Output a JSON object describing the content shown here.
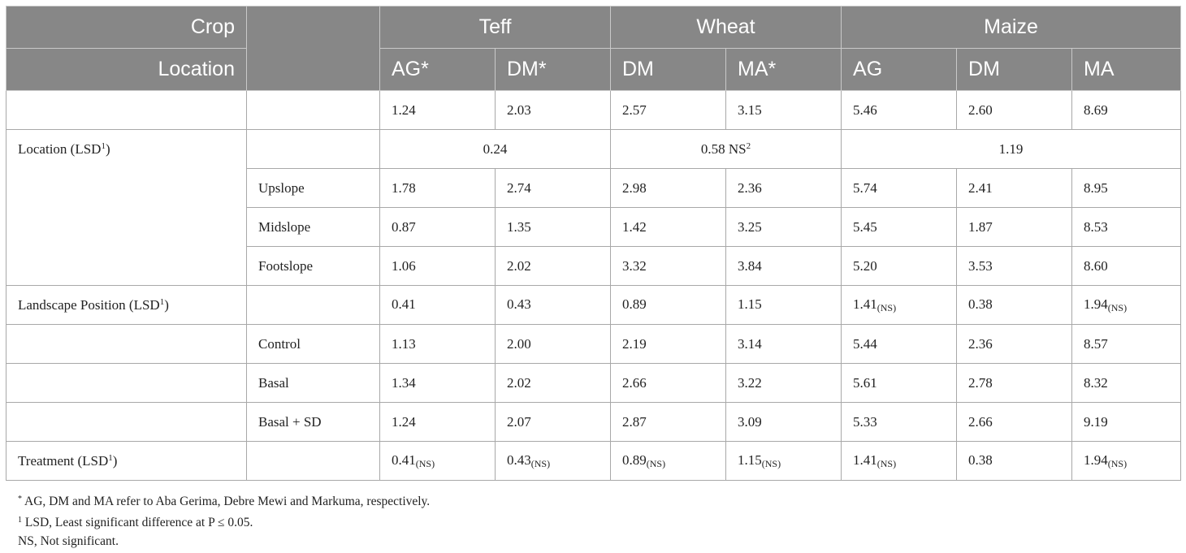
{
  "header": {
    "row1": {
      "label": "Crop",
      "teff": "Teff",
      "wheat": "Wheat",
      "maize": "Maize"
    },
    "row2": {
      "label": "Location",
      "cols": [
        "AG*",
        "DM*",
        "DM",
        "MA*",
        "AG",
        "DM",
        "MA"
      ]
    }
  },
  "rows": {
    "overall": {
      "values": [
        "1.24",
        "2.03",
        "2.57",
        "3.15",
        "5.46",
        "2.60",
        "8.69"
      ]
    },
    "location_lsd": {
      "label": "Location (LSD",
      "sup": "1",
      "label_close": ")",
      "teff": "0.24",
      "wheat": "0.58 NS",
      "wheat_sup": "2",
      "maize": "1.19"
    },
    "upslope": {
      "label": "Upslope",
      "values": [
        "1.78",
        "2.74",
        "2.98",
        "2.36",
        "5.74",
        "2.41",
        "8.95"
      ]
    },
    "midslope": {
      "label": "Midslope",
      "values": [
        "0.87",
        "1.35",
        "1.42",
        "3.25",
        "5.45",
        "1.87",
        "8.53"
      ]
    },
    "footslope": {
      "label": "Footslope",
      "values": [
        "1.06",
        "2.02",
        "3.32",
        "3.84",
        "5.20",
        "3.53",
        "8.60"
      ]
    },
    "landscape_lsd": {
      "label": "Landscape Position (LSD",
      "sup": "1",
      "label_close": ")",
      "values": [
        "0.41",
        "0.43",
        "0.89",
        "1.15",
        "1.41",
        "0.38",
        "1.94"
      ],
      "subs": [
        "",
        "",
        "",
        "",
        "(NS)",
        "",
        "(NS)"
      ]
    },
    "control": {
      "label": "Control",
      "values": [
        "1.13",
        "2.00",
        "2.19",
        "3.14",
        "5.44",
        "2.36",
        "8.57"
      ]
    },
    "basal": {
      "label": "Basal",
      "values": [
        "1.34",
        "2.02",
        "2.66",
        "3.22",
        "5.61",
        "2.78",
        "8.32"
      ]
    },
    "basal_sd": {
      "label": "Basal + SD",
      "values": [
        "1.24",
        "2.07",
        "2.87",
        "3.09",
        "5.33",
        "2.66",
        "9.19"
      ]
    },
    "treatment_lsd": {
      "label": "Treatment (LSD",
      "sup": "1",
      "label_close": ")",
      "values": [
        "0.41",
        "0.43",
        "0.89",
        "1.15",
        "1.41",
        "0.38",
        "1.94"
      ],
      "subs": [
        "(NS)",
        "(NS)",
        "(NS)",
        "(NS)",
        "(NS)",
        "",
        "(NS)"
      ]
    }
  },
  "notes": {
    "note1_mark": "*",
    "note1": "AG, DM and MA refer to Aba Gerima, Debre Mewi and Markuma, respectively.",
    "note2_mark": "1",
    "note2": "LSD, Least significant difference at P ≤ 0.05.",
    "note3": "NS, Not significant."
  }
}
